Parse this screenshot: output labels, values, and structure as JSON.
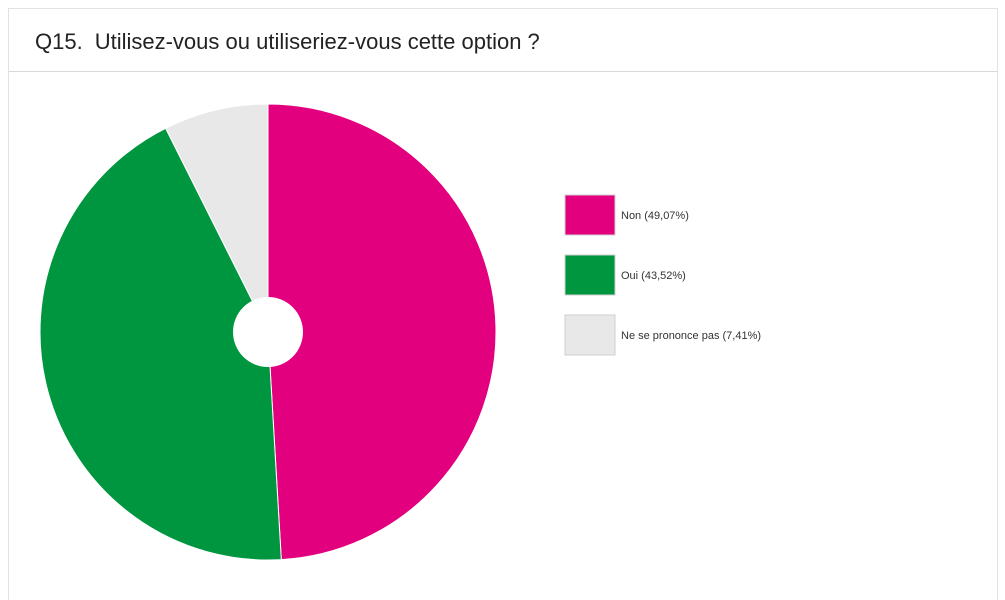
{
  "header": {
    "question_number": "Q15.",
    "question_text": "Utilisez-vous ou utiliseriez-vous cette option ?"
  },
  "chart_data": {
    "type": "pie",
    "categories": [
      "Non",
      "Oui",
      "Ne se prononce pas"
    ],
    "values": [
      49.07,
      43.52,
      7.41
    ],
    "colors": [
      "#e3007e",
      "#009640",
      "#e8e8e8"
    ],
    "legend_labels": [
      "Non (49,07%)",
      "Oui (43,52%)",
      "Ne se prononce pas (7,41%)"
    ],
    "legend_position": "right",
    "donut_hole": true
  }
}
